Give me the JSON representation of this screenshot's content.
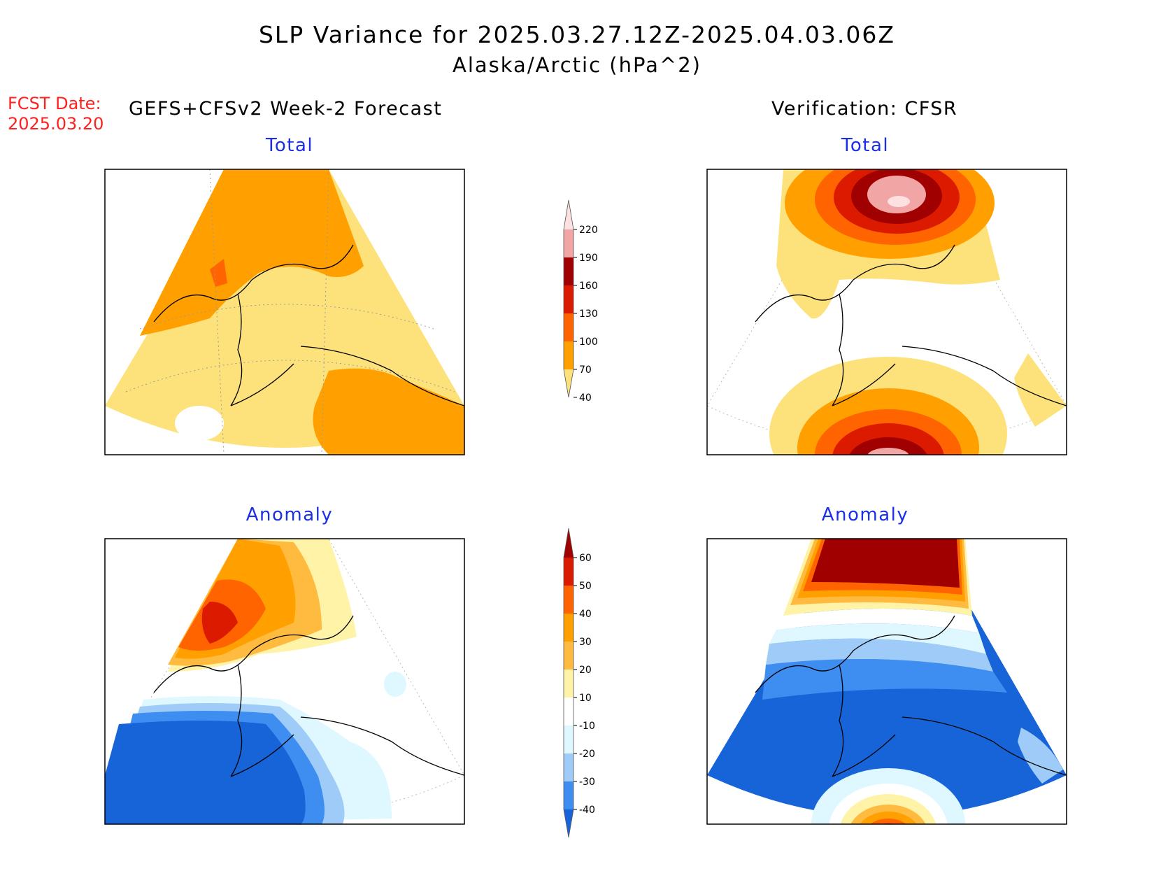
{
  "title": {
    "line1": "SLP Variance for 2025.03.27.12Z-2025.04.03.06Z",
    "line2": "Alaska/Arctic (hPa^2)"
  },
  "forecast_date": {
    "label": "FCST Date:",
    "value": "2025.03.20"
  },
  "columns": {
    "left": "GEFS+CFSv2 Week-2 Forecast",
    "right": "Verification: CFSR"
  },
  "panels": {
    "top_left": "Total",
    "top_right": "Total",
    "bottom_left": "Anomaly",
    "bottom_right": "Anomaly"
  },
  "colorbar_total": {
    "labels": [
      "220",
      "190",
      "160",
      "130",
      "100",
      "70",
      "40"
    ],
    "colors": [
      "#fde1e1",
      "#f2a5a5",
      "#a10000",
      "#dc1a00",
      "#ff6400",
      "#ffa000",
      "#fde27b"
    ]
  },
  "colorbar_anomaly": {
    "labels": [
      "60",
      "50",
      "40",
      "30",
      "20",
      "10",
      "-10",
      "-20",
      "-30",
      "-40"
    ],
    "colors": [
      "#a10000",
      "#dc1a00",
      "#ff6400",
      "#ffa000",
      "#ffbb40",
      "#fff3a8",
      "#ffffff",
      "#dff7ff",
      "#9ecbf7",
      "#3d8ef0",
      "#1764d9"
    ]
  },
  "palette": {
    "title_blue": "#1a2fe6",
    "fcst_red": "#ff2020"
  }
}
